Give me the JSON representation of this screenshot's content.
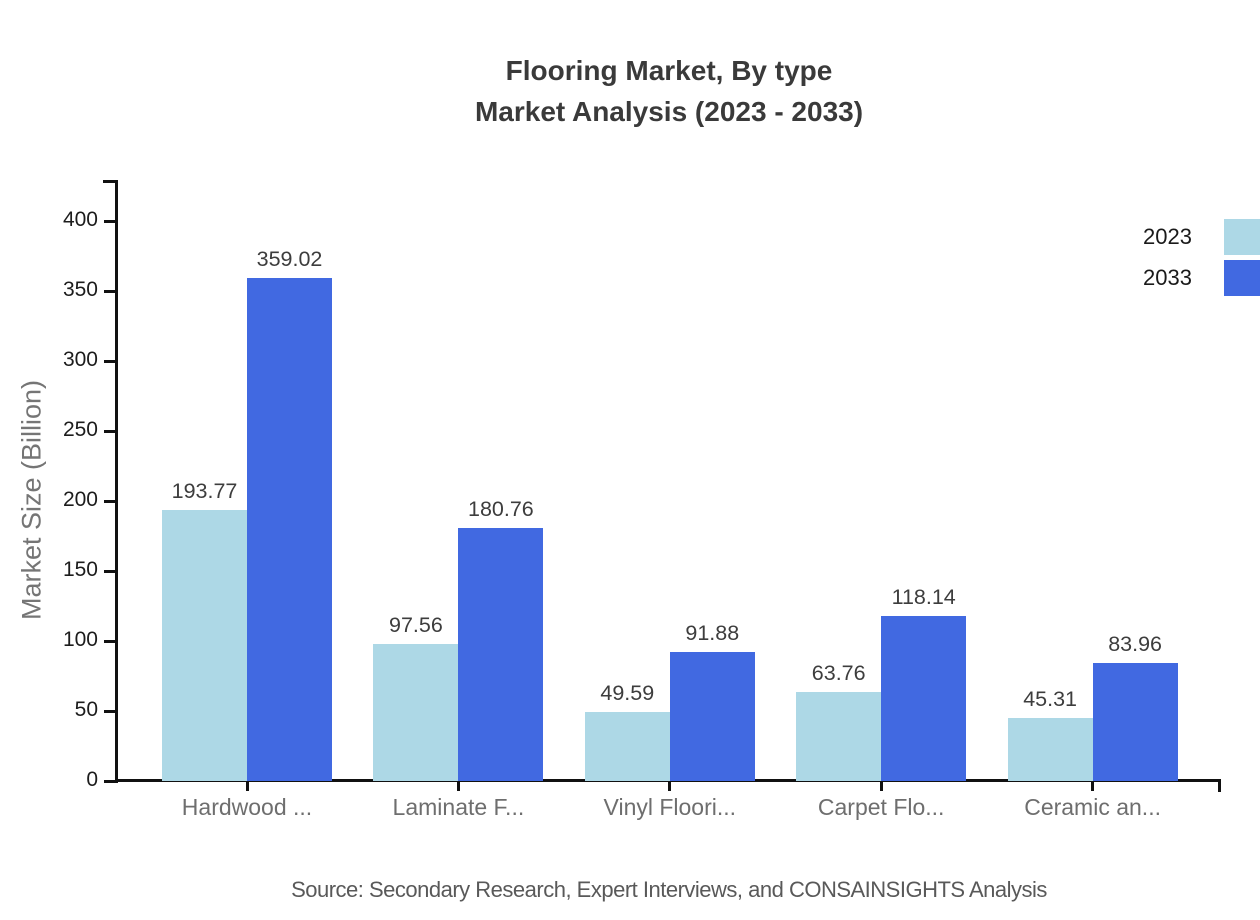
{
  "title": {
    "line1": "Flooring Market, By type",
    "line2": "Market Analysis (2023 - 2033)"
  },
  "source_note": "Source: Secondary Research, Expert Interviews, and CONSAINSIGHTS Analysis",
  "chart_data": {
    "type": "bar",
    "title": "Flooring Market, By type",
    "subtitle": "Market Analysis (2023 - 2033)",
    "categories": [
      "Hardwood ...",
      "Laminate F...",
      "Vinyl Floori...",
      "Carpet Flo...",
      "Ceramic an..."
    ],
    "series": [
      {
        "name": "2023",
        "color": "#add8e6",
        "values": [
          193.77,
          97.56,
          49.59,
          63.76,
          45.31
        ]
      },
      {
        "name": "2033",
        "color": "#4169e1",
        "values": [
          359.02,
          180.76,
          91.88,
          118.14,
          83.96
        ]
      }
    ],
    "ylabel": "Market Size (Billion)",
    "xlabel": "",
    "ylim": [
      0,
      400
    ],
    "yticks": [
      0,
      50,
      100,
      150,
      200,
      250,
      300,
      350,
      400
    ],
    "grid": false,
    "legend_position": "top-right",
    "bar_value_labels_shown": true,
    "axis_color": "#111111"
  }
}
